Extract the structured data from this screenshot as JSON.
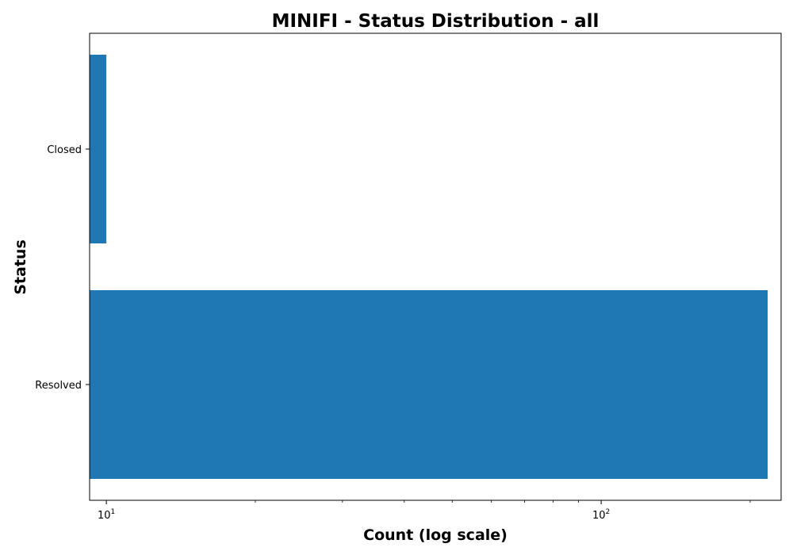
{
  "chart_data": {
    "type": "bar",
    "orientation": "horizontal",
    "title": "MINIFI - Status Distribution - all",
    "xlabel": "Count (log scale)",
    "ylabel": "Status",
    "x_scale": "log",
    "xlim": [
      9.25,
      231
    ],
    "categories": [
      "Closed",
      "Resolved"
    ],
    "values": [
      10,
      217
    ],
    "x_ticks": [
      {
        "value": 10,
        "base": "10",
        "exp": "1"
      },
      {
        "value": 100,
        "base": "10",
        "exp": "2"
      }
    ],
    "bar_color": "#1f77b4",
    "grid": false,
    "legend": "none"
  }
}
